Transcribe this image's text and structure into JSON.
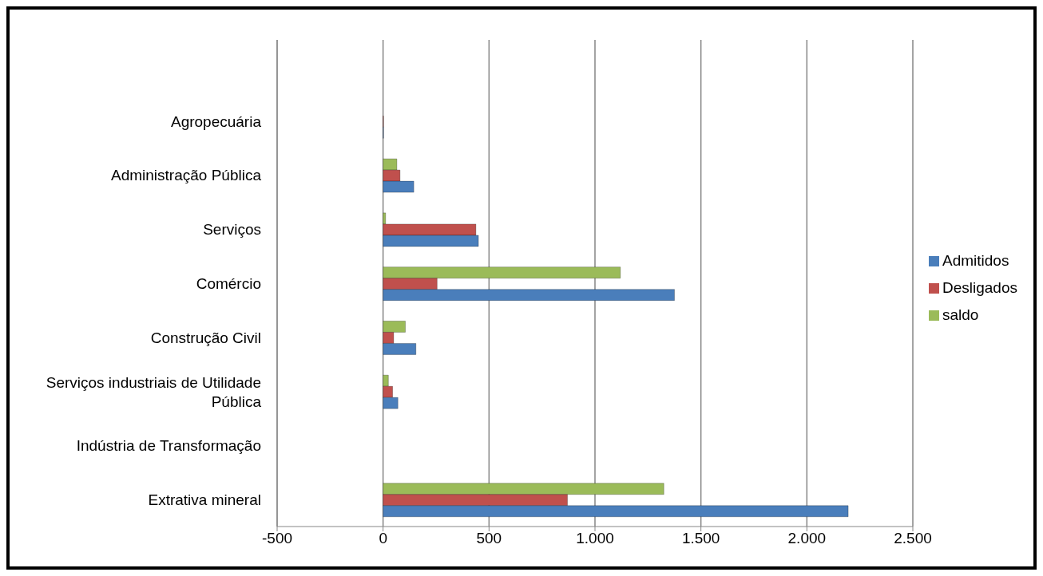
{
  "chart_data": {
    "type": "bar",
    "orientation": "horizontal",
    "categories": [
      null,
      "Agropecuária",
      "Administração Pública",
      "Serviços",
      "Comércio",
      "Construção Civil",
      "Serviços industriais de Utilidade Pública",
      "Indústria de Transformação",
      "Extrativa mineral"
    ],
    "series": [
      {
        "name": "saldo",
        "color": "#9bbb59",
        "values": [
          null,
          0,
          65,
          12,
          1120,
          105,
          25,
          0,
          1325
        ]
      },
      {
        "name": "Desligados",
        "color": "#c0504d",
        "values": [
          null,
          2,
          80,
          438,
          255,
          50,
          45,
          0,
          870
        ]
      },
      {
        "name": "Admitidos",
        "color": "#4a7ebb",
        "values": [
          null,
          2,
          145,
          450,
          1375,
          155,
          70,
          0,
          2195
        ]
      }
    ],
    "xlim": [
      -500,
      2500
    ],
    "xticks": [
      -500,
      0,
      500,
      {
        "value": 1000,
        "label": "1.000"
      },
      {
        "value": 1500,
        "label": "1.500"
      },
      {
        "value": 2000,
        "label": "2.000"
      },
      {
        "value": 2500,
        "label": "2.500"
      }
    ],
    "grid": "x",
    "legend": "right"
  }
}
